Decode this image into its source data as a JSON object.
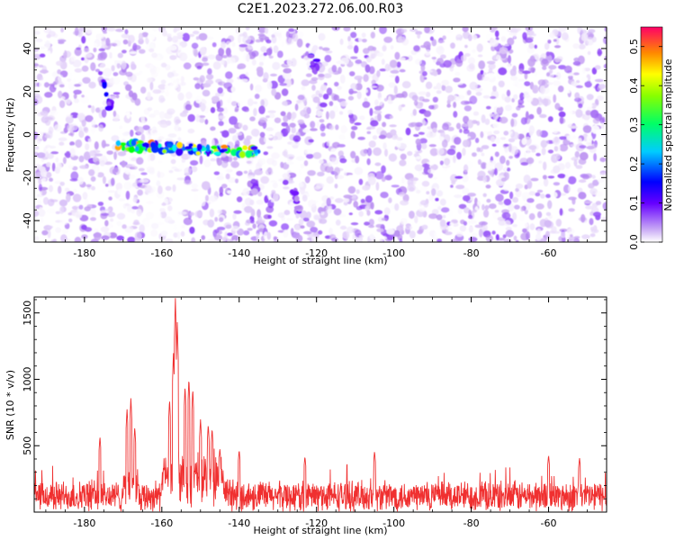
{
  "title": "C2E1.2023.272.06.00.R03",
  "chart_data": [
    {
      "type": "heatmap",
      "xlabel": "Height of straight line (km)",
      "ylabel": "Frequency (Hz)",
      "xlim": [
        -193,
        -45
      ],
      "ylim": [
        -50,
        50
      ],
      "xticks": [
        -180,
        -160,
        -140,
        -120,
        -100,
        -80,
        -60
      ],
      "yticks": [
        -40,
        -20,
        0,
        20,
        40
      ],
      "colorbar": {
        "label": "Normalized spectral amplitude",
        "range": [
          0,
          0.55
        ],
        "ticks": [
          0.0,
          0.1,
          0.2,
          0.3,
          0.4,
          0.5
        ],
        "colormap": [
          "#ffffff",
          "#b88cf0",
          "#6600ff",
          "#0000ff",
          "#00ffff",
          "#00ff00",
          "#ffff00",
          "#ff8800",
          "#ff0066"
        ]
      },
      "features": [
        {
          "x": [
            -176,
            -173
          ],
          "y": [
            30,
            12
          ],
          "amplitude": 0.18
        },
        {
          "x": [
            -172,
            -135
          ],
          "y": [
            -5,
            -8
          ],
          "amplitude": 0.35,
          "peak": 0.5
        },
        {
          "x": [
            -122,
            -120
          ],
          "y": [
            40,
            30
          ],
          "amplitude": 0.15
        },
        {
          "x": [
            -126,
            -124
          ],
          "y": [
            -25,
            -38
          ],
          "amplitude": 0.12
        },
        {
          "x": [
            -137,
            -135
          ],
          "y": [
            -22,
            -30
          ],
          "amplitude": 0.1
        }
      ]
    },
    {
      "type": "line",
      "xlabel": "Height of straight line (km)",
      "ylabel": "SNR (10 * v/v)",
      "xlim": [
        -193,
        -45
      ],
      "ylim": [
        0,
        1620
      ],
      "xticks": [
        -180,
        -160,
        -140,
        -120,
        -100,
        -80,
        -60
      ],
      "yticks": [
        500,
        1000,
        1500
      ],
      "series": [
        {
          "color": "#f03030",
          "baseline": 120,
          "noise": 110,
          "peaks": [
            {
              "x": -176,
              "y": 570
            },
            {
              "x": -169,
              "y": 780
            },
            {
              "x": -168,
              "y": 860
            },
            {
              "x": -167,
              "y": 640
            },
            {
              "x": -158,
              "y": 850
            },
            {
              "x": -157,
              "y": 1210
            },
            {
              "x": -156.5,
              "y": 1620
            },
            {
              "x": -156,
              "y": 1430
            },
            {
              "x": -154,
              "y": 950
            },
            {
              "x": -153,
              "y": 1010
            },
            {
              "x": -152,
              "y": 930
            },
            {
              "x": -150,
              "y": 700
            },
            {
              "x": -148,
              "y": 660
            },
            {
              "x": -147,
              "y": 630
            },
            {
              "x": -145,
              "y": 480
            },
            {
              "x": -140,
              "y": 470
            },
            {
              "x": -123,
              "y": 420
            },
            {
              "x": -105,
              "y": 460
            },
            {
              "x": -60,
              "y": 430
            },
            {
              "x": -52,
              "y": 410
            }
          ]
        }
      ]
    }
  ]
}
